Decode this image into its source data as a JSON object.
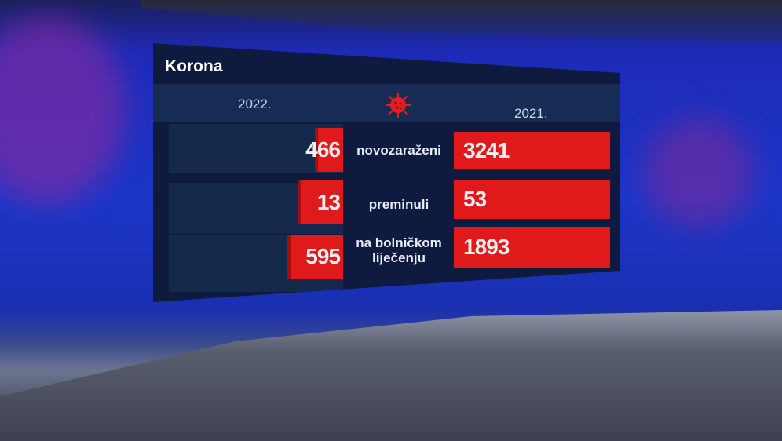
{
  "graphic": {
    "title": "Korona",
    "columns": {
      "left_year": "2022.",
      "right_year": "2021."
    },
    "icon": "virus-icon",
    "accent_color": "#e01a1a",
    "rows": [
      {
        "label": "novozaraženi",
        "value_2022": "466",
        "value_2021": "3241"
      },
      {
        "label": "preminuli",
        "value_2022": "13",
        "value_2021": "53"
      },
      {
        "label": "na bolničkom liječenju",
        "value_2022": "595",
        "value_2021": "1893"
      }
    ]
  }
}
